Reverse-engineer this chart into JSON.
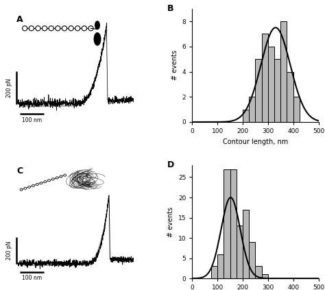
{
  "panel_B": {
    "bin_edges": [
      200,
      225,
      250,
      275,
      300,
      325,
      350,
      375,
      400,
      425,
      450
    ],
    "counts": [
      1,
      2,
      5,
      7,
      6,
      5,
      8,
      4,
      2,
      0
    ],
    "gauss_mean": 330,
    "gauss_std": 58,
    "gauss_scale": 7.5,
    "xlim": [
      0,
      500
    ],
    "ylim": [
      0,
      9
    ],
    "yticks": [
      0,
      2,
      4,
      6,
      8
    ],
    "xticks": [
      0,
      100,
      200,
      300,
      400,
      500
    ],
    "xlabel": "Contour length, nm",
    "ylabel": "# events",
    "label": "B"
  },
  "panel_D": {
    "bin_edges": [
      75,
      100,
      125,
      150,
      175,
      200,
      225,
      250,
      275,
      300,
      325
    ],
    "counts": [
      3,
      6,
      27,
      27,
      13,
      17,
      9,
      3,
      1,
      0
    ],
    "gauss_mean": 152,
    "gauss_std": 38,
    "gauss_scale": 20,
    "xlim": [
      0,
      500
    ],
    "ylim": [
      0,
      28
    ],
    "yticks": [
      0,
      5,
      10,
      15,
      20,
      25
    ],
    "xticks": [
      0,
      100,
      200,
      300,
      400,
      500
    ],
    "xlabel": "Contour length, nm",
    "ylabel": "# events",
    "label": "D"
  },
  "bar_color": "#b8b8b8",
  "bar_edgecolor": "#000000",
  "curve_color": "#000000",
  "bg_color": "#ffffff",
  "label_A": "A",
  "label_C": "C",
  "trace_color": "#000000",
  "fit_color": "#888888"
}
